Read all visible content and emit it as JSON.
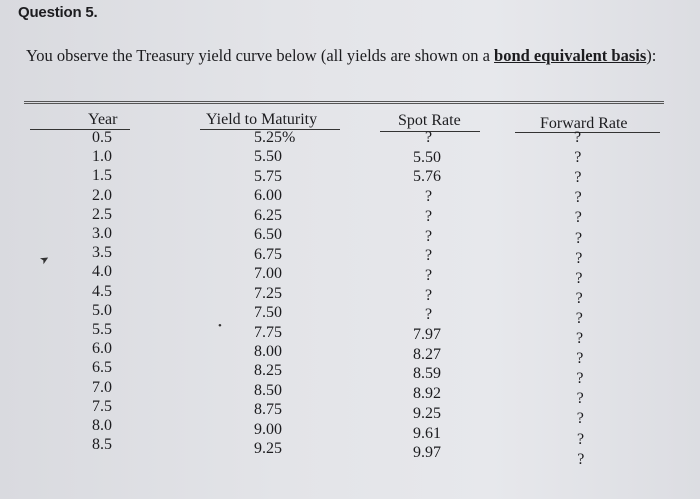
{
  "title": "Question 5.",
  "prompt": {
    "text_before": "You observe the Treasury yield curve below (all yields are shown on a ",
    "emphasis": "bond equivalent basis",
    "text_after": "):"
  },
  "table": {
    "headers": [
      "Year",
      "Yield to Maturity",
      "Spot Rate",
      "Forward Rate"
    ],
    "years": [
      "0.5",
      "1.0",
      "1.5",
      "2.0",
      "2.5",
      "3.0",
      "3.5",
      "4.0",
      "4.5",
      "5.0",
      "5.5",
      "6.0",
      "6.5",
      "7.0",
      "7.5",
      "8.0",
      "8.5"
    ],
    "ytm": [
      "5.25%",
      "5.50",
      "5.75",
      "6.00",
      "6.25",
      "6.50",
      "6.75",
      "7.00",
      "7.25",
      "7.50",
      "7.75",
      "8.00",
      "8.25",
      "8.50",
      "8.75",
      "9.00",
      "9.25"
    ],
    "spot": [
      "?",
      "5.50",
      "5.76",
      "?",
      "?",
      "?",
      "?",
      "?",
      "?",
      "?",
      "7.97",
      "8.27",
      "8.59",
      "8.92",
      "9.25",
      "9.61",
      "9.97"
    ],
    "forward": [
      "?",
      "?",
      "?",
      "?",
      "?",
      "?",
      "?",
      "?",
      "?",
      "?",
      "?",
      "?",
      "?",
      "?",
      "?",
      "?",
      "?"
    ]
  }
}
